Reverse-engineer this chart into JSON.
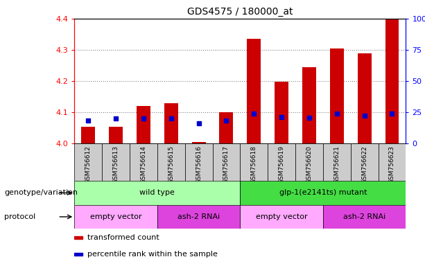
{
  "title": "GDS4575 / 180000_at",
  "samples": [
    "GSM756612",
    "GSM756613",
    "GSM756614",
    "GSM756615",
    "GSM756616",
    "GSM756617",
    "GSM756618",
    "GSM756619",
    "GSM756620",
    "GSM756621",
    "GSM756622",
    "GSM756623"
  ],
  "red_values": [
    4.055,
    4.055,
    4.12,
    4.13,
    4.005,
    4.1,
    4.335,
    4.198,
    4.245,
    4.305,
    4.29,
    4.4
  ],
  "blue_values": [
    4.075,
    4.08,
    4.08,
    4.08,
    4.065,
    4.075,
    4.095,
    4.085,
    4.082,
    4.095,
    4.09,
    4.095
  ],
  "ymin": 4.0,
  "ymax": 4.4,
  "yticks_left": [
    4.0,
    4.1,
    4.2,
    4.3,
    4.4
  ],
  "yticks_right": [
    0,
    25,
    50,
    75,
    100
  ],
  "bar_color": "#CC0000",
  "dot_color": "#0000CC",
  "bg_color": "#CCCCCC",
  "plot_bg": "#FFFFFF",
  "genotype_row": {
    "label": "genotype/variation",
    "groups": [
      {
        "text": "wild type",
        "start": 0,
        "end": 6,
        "color": "#AAFFAA"
      },
      {
        "text": "glp-1(e2141ts) mutant",
        "start": 6,
        "end": 12,
        "color": "#44DD44"
      }
    ]
  },
  "protocol_row": {
    "label": "protocol",
    "groups": [
      {
        "text": "empty vector",
        "start": 0,
        "end": 3,
        "color": "#FFAAFF"
      },
      {
        "text": "ash-2 RNAi",
        "start": 3,
        "end": 6,
        "color": "#DD44DD"
      },
      {
        "text": "empty vector",
        "start": 6,
        "end": 9,
        "color": "#FFAAFF"
      },
      {
        "text": "ash-2 RNAi",
        "start": 9,
        "end": 12,
        "color": "#DD44DD"
      }
    ]
  },
  "legend_items": [
    {
      "color": "#CC0000",
      "label": "transformed count"
    },
    {
      "color": "#0000CC",
      "label": "percentile rank within the sample"
    }
  ]
}
